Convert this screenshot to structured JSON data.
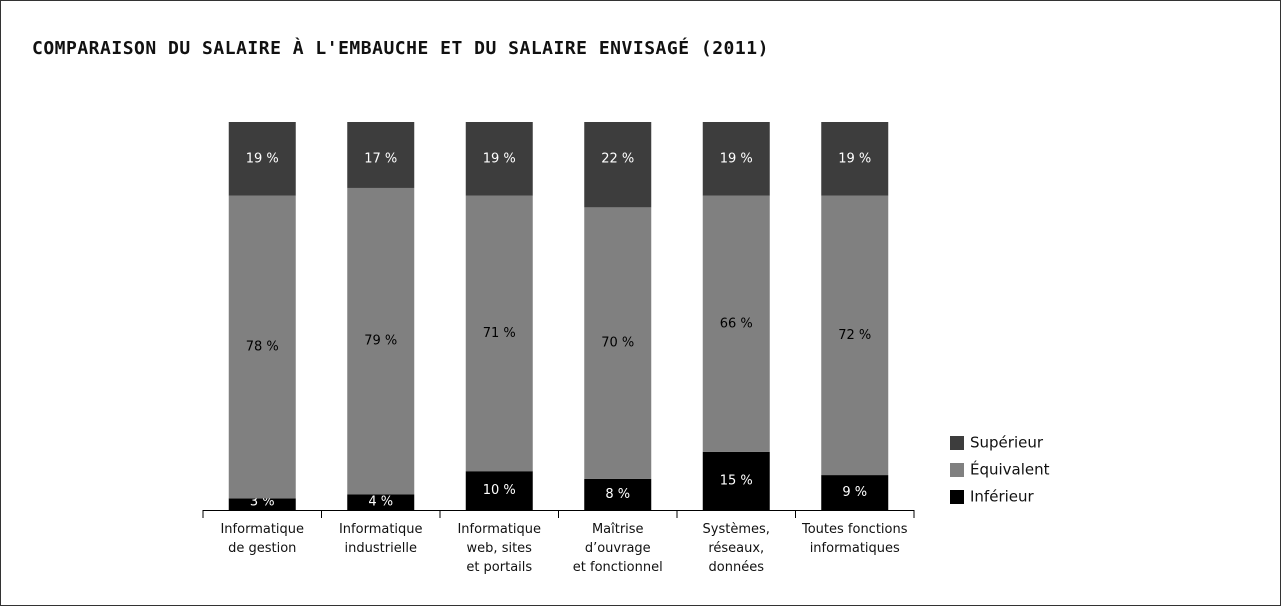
{
  "chart_data": {
    "type": "stacked_bar",
    "title": "COMPARAISON DU SALAIRE À L'EMBAUCHE ET DU SALAIRE ENVISAGÉ (2011)",
    "categories": [
      "Informatique\nde gestion",
      "Informatique\nindustrielle",
      "Informatique\nweb, sites\net portails",
      "Maîtrise\nd’ouvrage\net fonctionnel",
      "Systèmes,\nréseaux,\ndonnées",
      "Toutes fonctions\ninformatiques"
    ],
    "series": [
      {
        "name": "Inférieur",
        "color": "#000000",
        "label_color": "#ffffff",
        "values": [
          3,
          4,
          10,
          8,
          15,
          9
        ],
        "value_labels": [
          "3 %",
          "4 %",
          "10 %",
          "8 %",
          "15 %",
          "9 %"
        ]
      },
      {
        "name": "Équivalent",
        "color": "#808080",
        "label_color": "#000000",
        "values": [
          78,
          79,
          71,
          70,
          66,
          72
        ],
        "value_labels": [
          "78 %",
          "79 %",
          "71 %",
          "70 %",
          "66 %",
          "72 %"
        ]
      },
      {
        "name": "Supérieur",
        "color": "#3d3d3d",
        "label_color": "#ffffff",
        "values": [
          19,
          17,
          19,
          22,
          19,
          19
        ],
        "value_labels": [
          "19 %",
          "17 %",
          "19 %",
          "22 %",
          "19 %",
          "19 %"
        ]
      }
    ],
    "ylim": [
      0,
      100
    ]
  }
}
